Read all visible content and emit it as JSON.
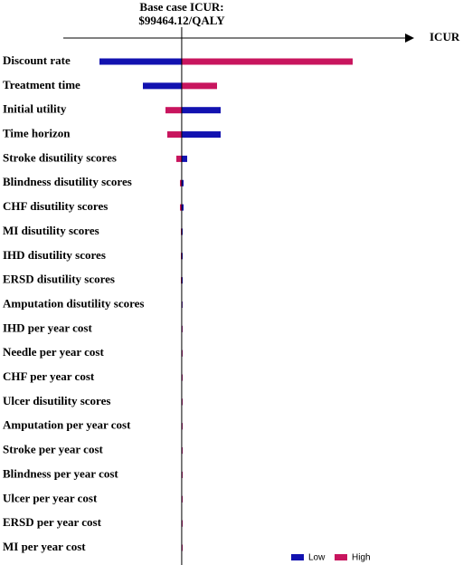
{
  "chart_data": {
    "type": "tornado",
    "title": [
      "Base case ICUR:",
      "$99464.12/QALY"
    ],
    "base_value": 99464.12,
    "x_label": "ICUR",
    "xlim": [
      34000,
      224000
    ],
    "categories": [
      "Discount rate",
      "Treatment time",
      "Initial utility",
      "Time horizon",
      "Stroke disutility scores",
      "Blindness disutility scores",
      "CHF disutility scores",
      "MI disutility scores",
      "IHD disutility scores",
      "ERSD disutility scores",
      "Amputation disutility scores",
      "IHD per year cost",
      "Needle per year cost",
      "CHF per year cost",
      "Ulcer disutility scores",
      "Amputation per year cost",
      "Stroke per year cost",
      "Blindness per year cost",
      "Ulcer per year cost",
      "ERSD per year cost",
      "MI per year cost"
    ],
    "series": [
      {
        "name": "Low",
        "color": "#1212b0",
        "values": [
          54000,
          78000,
          121000,
          121000,
          102500,
          100500,
          100500,
          100000,
          100000,
          100000,
          99700,
          99550,
          99500,
          99500,
          99500,
          99490,
          99490,
          99480,
          99480,
          99480,
          99480
        ]
      },
      {
        "name": "High",
        "color": "#c8155e",
        "values": [
          194000,
          119000,
          90500,
          91500,
          96500,
          98500,
          98500,
          99000,
          99000,
          99000,
          99300,
          99400,
          99430,
          99430,
          99440,
          99440,
          99440,
          99450,
          99450,
          99450,
          99450
        ]
      }
    ]
  }
}
